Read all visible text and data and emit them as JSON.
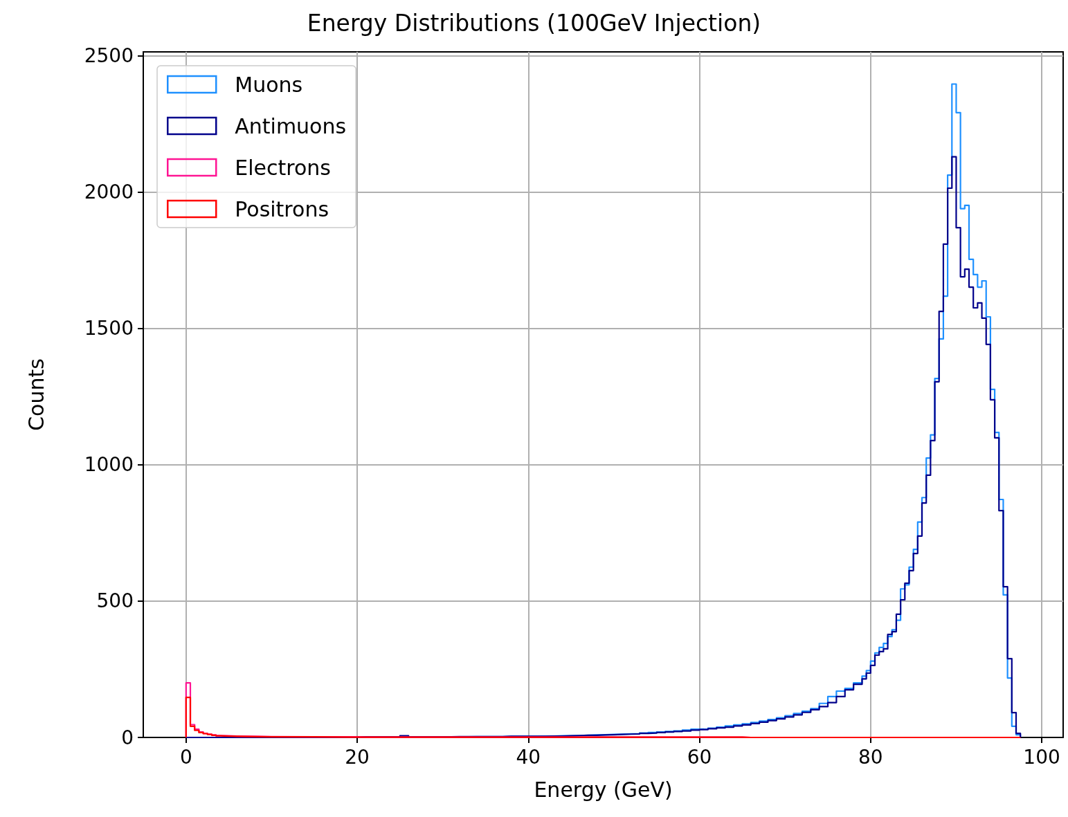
{
  "chart_data": {
    "type": "histogram",
    "title": "Energy Distributions (100GeV Injection)",
    "xlabel": "Energy (GeV)",
    "ylabel": "Counts",
    "xlim": [
      -5,
      102.5
    ],
    "xticks": [
      0,
      20,
      40,
      60,
      80,
      100
    ],
    "ylim": [
      0,
      2515
    ],
    "yticks": [
      0,
      500,
      1000,
      1500,
      2000,
      2500
    ],
    "grid": true,
    "legend": "top left",
    "marker": "none",
    "bins": [
      0,
      0.5,
      1,
      1.5,
      2,
      2.5,
      3,
      3.5,
      4,
      5,
      6,
      8,
      10,
      15,
      20,
      21,
      22,
      23,
      24,
      25,
      26,
      27,
      28,
      29,
      30,
      31,
      32,
      33,
      34,
      35,
      36,
      37,
      38,
      39,
      40,
      41,
      42,
      43,
      44,
      45,
      46,
      47,
      48,
      49,
      50,
      51,
      52,
      53,
      54,
      55,
      56,
      57,
      58,
      59,
      60,
      61,
      62,
      63,
      64,
      65,
      66,
      67,
      68,
      69,
      70,
      71,
      72,
      73,
      74,
      75,
      76,
      77,
      78,
      79,
      79.5,
      80,
      80.5,
      81,
      81.5,
      82,
      82.5,
      83,
      83.5,
      84,
      84.5,
      85,
      85.5,
      86,
      86.5,
      87,
      87.5,
      88,
      88.5,
      89,
      89.5,
      90,
      90.5,
      91,
      91.5,
      92,
      92.5,
      93,
      93.5,
      94,
      94.5,
      95,
      95.5,
      96,
      96.5,
      97,
      97.5
    ],
    "series": [
      {
        "name": "Muons",
        "color": "#1e90ff",
        "values": [
          0,
          0,
          0,
          0,
          0,
          0,
          0,
          0,
          0,
          0,
          0,
          0,
          0,
          0,
          1,
          1,
          1,
          1,
          1,
          1,
          1,
          1,
          1,
          1,
          2,
          2,
          2,
          3,
          3,
          3,
          3,
          4,
          4,
          4,
          4,
          5,
          5,
          6,
          6,
          7,
          8,
          9,
          10,
          11,
          12,
          13,
          14,
          16,
          18,
          20,
          22,
          24,
          27,
          30,
          31,
          34,
          38,
          42,
          46,
          50,
          55,
          60,
          66,
          72,
          80,
          88,
          96,
          106,
          125,
          150,
          170,
          180,
          200,
          225,
          245,
          280,
          310,
          330,
          345,
          370,
          395,
          430,
          545,
          560,
          625,
          690,
          790,
          880,
          1025,
          1110,
          1317,
          1462,
          1619,
          2063,
          2397,
          2292,
          1940,
          1952,
          1754,
          1698,
          1652,
          1675,
          1543,
          1277,
          1119,
          873,
          523,
          218,
          41,
          10
        ]
      },
      {
        "name": "Antimuons",
        "color": "#00008b",
        "values": [
          0,
          0,
          0,
          0,
          0,
          0,
          0,
          0,
          0,
          0,
          0,
          0,
          0,
          0,
          2,
          2,
          2,
          2,
          2,
          6,
          2,
          2,
          2,
          2,
          2,
          3,
          3,
          3,
          3,
          3,
          3,
          4,
          4,
          4,
          4,
          4,
          5,
          5,
          6,
          7,
          8,
          8,
          9,
          10,
          11,
          12,
          13,
          15,
          16,
          18,
          20,
          22,
          24,
          27,
          29,
          32,
          35,
          38,
          42,
          46,
          51,
          56,
          62,
          68,
          75,
          83,
          92,
          102,
          113,
          128,
          150,
          175,
          195,
          215,
          236,
          264,
          302,
          315,
          325,
          378,
          388,
          452,
          505,
          566,
          612,
          675,
          739,
          860,
          962,
          1089,
          1305,
          1563,
          1810,
          2015,
          2130,
          1870,
          1690,
          1718,
          1652,
          1576,
          1594,
          1538,
          1442,
          1239,
          1099,
          832,
          553,
          289,
          91,
          15
        ]
      },
      {
        "name": "Electrons",
        "color": "#ff1493",
        "values": [
          200,
          47,
          30,
          20,
          15,
          12,
          9,
          7,
          6,
          5,
          4,
          3,
          2,
          2,
          1,
          1,
          1,
          1,
          1,
          1,
          1,
          1,
          1,
          1,
          1,
          1,
          1,
          1,
          1,
          1,
          1,
          1,
          1,
          1,
          1,
          1,
          1,
          1,
          1,
          1,
          1,
          1,
          1,
          1,
          1,
          1,
          1,
          1,
          1,
          1,
          1,
          1,
          1,
          1,
          1,
          1,
          1,
          1,
          1,
          0,
          0,
          0,
          0,
          0,
          0,
          0,
          0,
          0,
          0,
          0,
          0,
          0,
          0,
          0,
          0,
          0,
          0,
          0,
          0,
          0,
          0,
          0,
          0,
          0,
          0,
          0,
          0,
          0,
          0,
          0,
          0,
          0,
          0,
          0,
          0,
          0,
          0,
          0,
          0,
          0,
          0,
          0,
          0,
          0,
          0,
          0,
          0,
          0,
          0,
          0
        ]
      },
      {
        "name": "Positrons",
        "color": "#ff0000",
        "values": [
          147,
          41,
          26,
          18,
          14,
          11,
          8,
          6,
          5,
          4,
          3,
          2,
          2,
          1,
          1,
          1,
          1,
          1,
          1,
          1,
          1,
          1,
          1,
          1,
          1,
          1,
          1,
          1,
          1,
          1,
          1,
          1,
          1,
          1,
          1,
          1,
          1,
          1,
          1,
          1,
          1,
          1,
          1,
          1,
          1,
          1,
          1,
          1,
          1,
          1,
          1,
          1,
          1,
          1,
          1,
          1,
          1,
          1,
          1,
          0,
          0,
          0,
          0,
          0,
          0,
          0,
          0,
          0,
          0,
          0,
          0,
          0,
          0,
          0,
          0,
          0,
          0,
          0,
          0,
          0,
          0,
          0,
          0,
          0,
          0,
          0,
          0,
          0,
          0,
          0,
          0,
          0,
          0,
          0,
          0,
          0,
          0,
          0,
          0,
          0,
          0,
          0,
          0,
          0,
          0,
          0,
          0,
          0,
          0,
          0
        ]
      }
    ]
  }
}
